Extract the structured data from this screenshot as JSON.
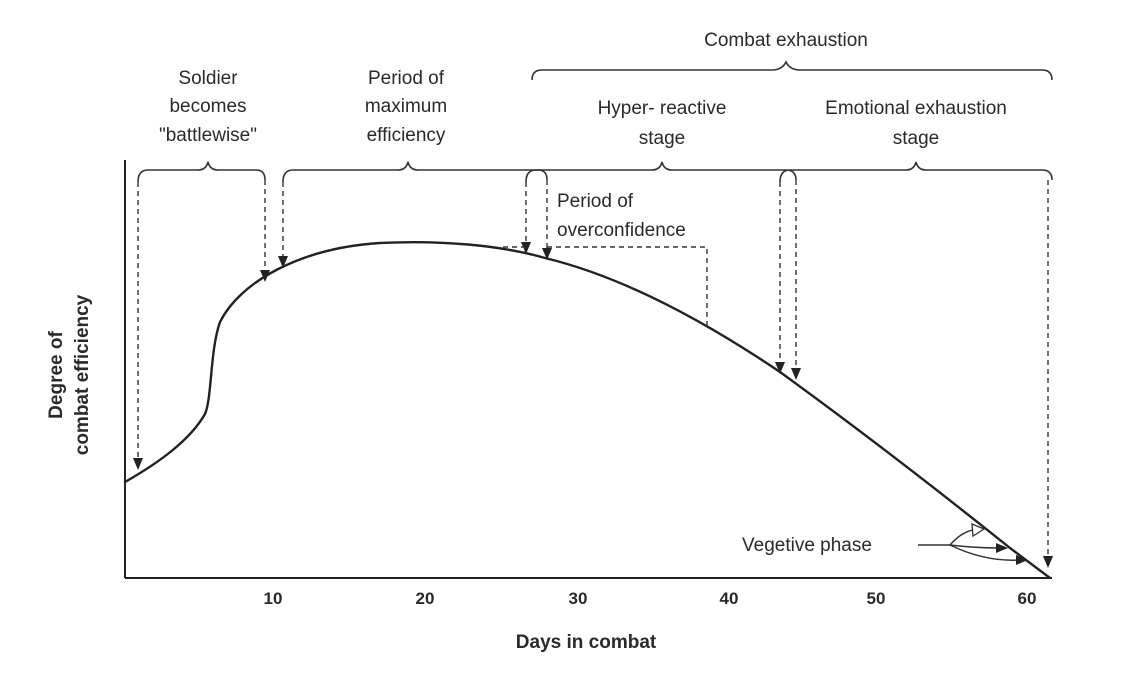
{
  "diagram": {
    "x_axis_label": "Days in combat",
    "y_axis_label_line1": "Degree of",
    "y_axis_label_line2": "combat efficiency",
    "x_ticks": [
      "10",
      "20",
      "30",
      "40",
      "50",
      "60"
    ],
    "labels": {
      "combat_exhaustion": "Combat exhaustion",
      "battlewise_line1": "Soldier",
      "battlewise_line2": "becomes",
      "battlewise_line3": "\"battlewise\"",
      "max_eff_line1": "Period of",
      "max_eff_line2": "maximum",
      "max_eff_line3": "efficiency",
      "hyper_line1": "Hyper- reactive",
      "hyper_line2": "stage",
      "emotional_line1": "Emotional exhaustion",
      "emotional_line2": "stage",
      "overconf_line1": "Period of",
      "overconf_line2": "overconfidence",
      "vegetive": "Vegetive phase"
    },
    "colors": {
      "ink": "#222222",
      "background": "#ffffff"
    }
  }
}
